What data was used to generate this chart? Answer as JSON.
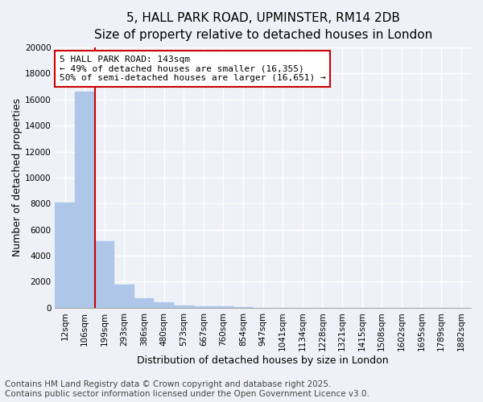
{
  "title_line1": "5, HALL PARK ROAD, UPMINSTER, RM14 2DB",
  "title_line2": "Size of property relative to detached houses in London",
  "xlabel": "Distribution of detached houses by size in London",
  "ylabel": "Number of detached properties",
  "categories": [
    "12sqm",
    "106sqm",
    "199sqm",
    "293sqm",
    "386sqm",
    "480sqm",
    "573sqm",
    "667sqm",
    "760sqm",
    "854sqm",
    "947sqm",
    "1041sqm",
    "1134sqm",
    "1228sqm",
    "1321sqm",
    "1415sqm",
    "1508sqm",
    "1602sqm",
    "1695sqm",
    "1789sqm",
    "1882sqm"
  ],
  "values": [
    8100,
    16600,
    5100,
    1800,
    750,
    430,
    200,
    130,
    90,
    60,
    0,
    0,
    0,
    0,
    0,
    0,
    0,
    0,
    0,
    0,
    0
  ],
  "bar_color": "#aec6e8",
  "bar_edgecolor": "#aec6e8",
  "redline_index": 1.5,
  "annotation_text": "5 HALL PARK ROAD: 143sqm\n← 49% of detached houses are smaller (16,355)\n50% of semi-detached houses are larger (16,651) →",
  "annotation_box_color": "#ffffff",
  "annotation_box_edgecolor": "#cc0000",
  "redline_color": "#cc0000",
  "ylim": [
    0,
    20000
  ],
  "yticks": [
    0,
    2000,
    4000,
    6000,
    8000,
    10000,
    12000,
    14000,
    16000,
    18000,
    20000
  ],
  "footer_line1": "Contains HM Land Registry data © Crown copyright and database right 2025.",
  "footer_line2": "Contains public sector information licensed under the Open Government Licence v3.0.",
  "background_color": "#eef2f8",
  "grid_color": "#ffffff",
  "title_fontsize": 11,
  "subtitle_fontsize": 10,
  "axis_label_fontsize": 9,
  "tick_fontsize": 7.5,
  "footer_fontsize": 7.5,
  "annotation_fontsize": 8
}
